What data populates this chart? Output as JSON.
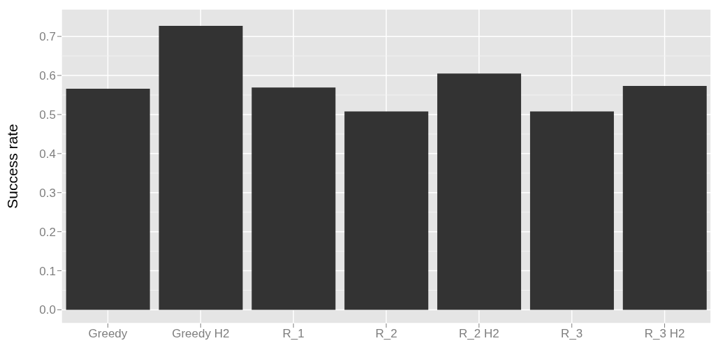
{
  "chart_data": {
    "type": "bar",
    "ylabel": "Success rate",
    "categories": [
      "Greedy",
      "Greedy H2",
      "R_1",
      "R_2",
      "R_2 H2",
      "R_3",
      "R_3 H2"
    ],
    "values": [
      0.566,
      0.727,
      0.569,
      0.508,
      0.605,
      0.508,
      0.573
    ],
    "color": "#333333",
    "ylim": [
      -0.035,
      0.77
    ],
    "yticks": [
      {
        "value": 0,
        "label": "0.0"
      },
      {
        "value": 0.1,
        "label": "0.1"
      },
      {
        "value": 0.2,
        "label": "0.2"
      },
      {
        "value": 0.3,
        "label": "0.3"
      },
      {
        "value": 0.4,
        "label": "0.4"
      },
      {
        "value": 0.5,
        "label": "0.5"
      },
      {
        "value": 0.6,
        "label": "0.6"
      },
      {
        "value": 0.7,
        "label": "0.7"
      }
    ],
    "grid": true
  }
}
